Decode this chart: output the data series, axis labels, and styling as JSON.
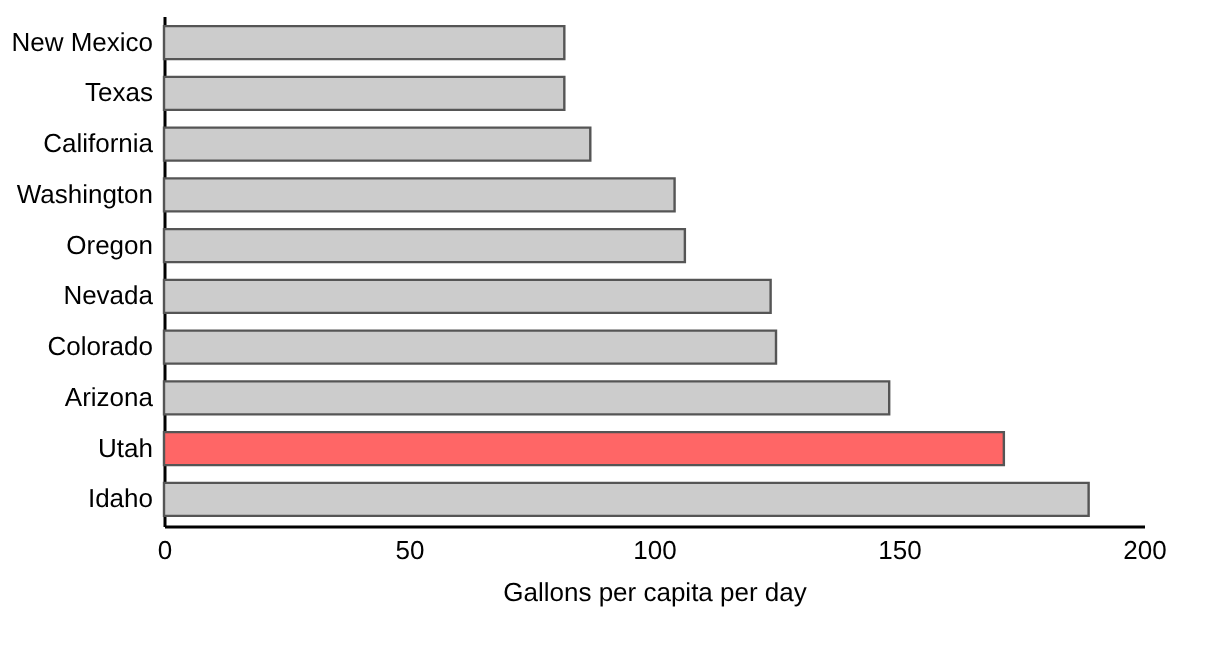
{
  "chart_data": {
    "type": "bar",
    "orientation": "horizontal",
    "xlabel": "Gallons per capita per day",
    "categories": [
      "New Mexico",
      "Texas",
      "California",
      "Washington",
      "Oregon",
      "Nevada",
      "Colorado",
      "Arizona",
      "Utah",
      "Idaho"
    ],
    "values": [
      81.7,
      81.7,
      87,
      104.2,
      106.3,
      123.8,
      124.9,
      148,
      171.4,
      188.7
    ],
    "colors": [
      "#cccccc",
      "#cccccc",
      "#cccccc",
      "#cccccc",
      "#cccccc",
      "#cccccc",
      "#cccccc",
      "#cccccc",
      "#ff6666",
      "#cccccc"
    ],
    "xlim": [
      0,
      200
    ],
    "xticks": [
      0,
      50,
      100,
      150,
      200
    ],
    "grid": false
  }
}
